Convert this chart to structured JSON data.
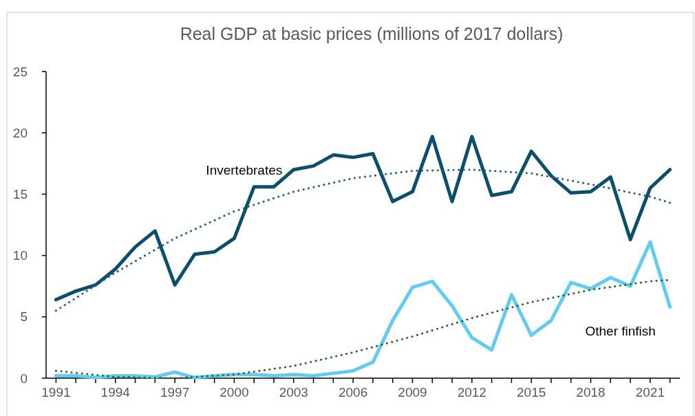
{
  "chart_data": {
    "type": "line",
    "title": "Real GDP at basic prices (millions of  2017 dollars)",
    "x": [
      1991,
      1992,
      1993,
      1994,
      1995,
      1996,
      1997,
      1998,
      1999,
      2000,
      2001,
      2002,
      2003,
      2004,
      2005,
      2006,
      2007,
      2008,
      2009,
      2010,
      2011,
      2012,
      2013,
      2014,
      2015,
      2016,
      2017,
      2018,
      2019,
      2020,
      2021,
      2022
    ],
    "series": [
      {
        "name": "Invertebrates",
        "color": "#0b4f6c",
        "values": [
          6.4,
          7.1,
          7.6,
          8.9,
          10.7,
          12.0,
          7.6,
          10.1,
          10.3,
          11.4,
          15.6,
          15.6,
          17.0,
          17.3,
          18.2,
          18.0,
          18.3,
          14.4,
          15.2,
          19.7,
          14.4,
          19.7,
          14.9,
          15.2,
          18.5,
          16.5,
          15.1,
          15.2,
          16.4,
          11.3,
          15.5,
          17.0
        ]
      },
      {
        "name": "Other finfish",
        "color": "#62cbf2",
        "values": [
          0.2,
          0.2,
          0.05,
          0.2,
          0.2,
          0.1,
          0.5,
          0.05,
          0.2,
          0.3,
          0.3,
          0.2,
          0.3,
          0.2,
          0.4,
          0.6,
          1.3,
          4.7,
          7.4,
          7.9,
          5.9,
          3.3,
          2.3,
          6.8,
          3.5,
          4.7,
          7.8,
          7.3,
          8.2,
          7.5,
          11.1,
          5.8
        ]
      },
      {
        "type": "line",
        "line_style": "dotted",
        "color": "#1a5f7a",
        "x": [
          1991,
          1994,
          1997,
          2000,
          2003,
          2006,
          2009,
          2012,
          2015,
          2018,
          2021,
          2022
        ],
        "values": [
          5.5,
          8.6,
          11.4,
          13.6,
          15.2,
          16.3,
          16.9,
          17.0,
          16.7,
          15.8,
          14.8,
          14.3
        ]
      },
      {
        "type": "line",
        "line_style": "dotted",
        "color": "#1e6b1e",
        "x": [
          1991,
          1994,
          1997,
          2000,
          2003,
          2006,
          2009,
          2012,
          2015,
          2018,
          2021,
          2022
        ],
        "values": [
          0.6,
          0.1,
          0.0,
          0.3,
          1.0,
          2.1,
          3.4,
          4.9,
          6.2,
          7.2,
          7.9,
          8.0
        ]
      }
    ],
    "xlim": [
      1990.5,
      2022.5
    ],
    "xticks": [
      1991,
      {
        "value": 1992,
        "label": null
      },
      {
        "value": 1993,
        "label": null
      },
      1994,
      {
        "value": 1995,
        "label": null
      },
      {
        "value": 1996,
        "label": null
      },
      1997,
      {
        "value": 1998,
        "label": null
      },
      {
        "value": 1999,
        "label": null
      },
      2000,
      {
        "value": 2001,
        "label": null
      },
      {
        "value": 2002,
        "label": null
      },
      2003,
      {
        "value": 2004,
        "label": null
      },
      {
        "value": 2005,
        "label": null
      },
      2006,
      {
        "value": 2007,
        "label": null
      },
      {
        "value": 2008,
        "label": null
      },
      2009,
      {
        "value": 2010,
        "label": null
      },
      {
        "value": 2011,
        "label": null
      },
      2012,
      {
        "value": 2013,
        "label": null
      },
      {
        "value": 2014,
        "label": null
      },
      2015,
      {
        "value": 2016,
        "label": null
      },
      {
        "value": 2017,
        "label": null
      },
      2018,
      {
        "value": 2019,
        "label": null
      },
      {
        "value": 2020,
        "label": null
      },
      2021,
      {
        "value": 2022,
        "label": null
      }
    ],
    "ylim": [
      0,
      25
    ],
    "yticks": [
      0,
      5,
      10,
      15,
      20,
      25
    ],
    "grid": false,
    "legend": false,
    "line_style": "solid",
    "marker": "none"
  }
}
